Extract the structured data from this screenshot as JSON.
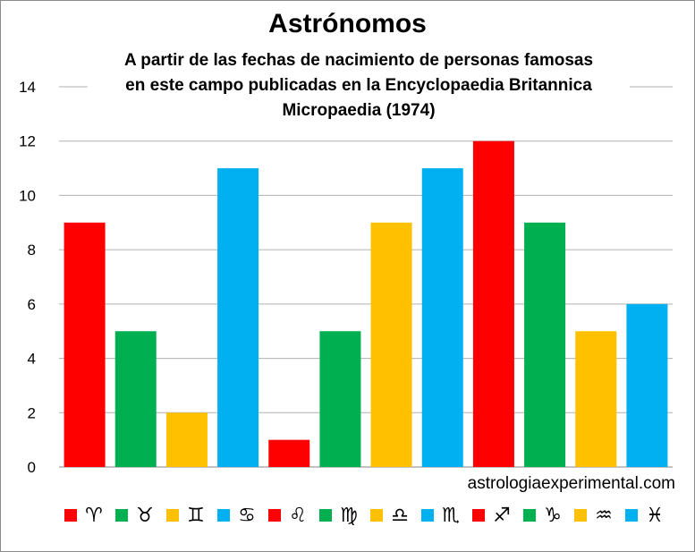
{
  "chart_data": {
    "type": "bar",
    "title": "Astrónomos",
    "subtitle": [
      "A partir de las fechas de nacimiento de personas famosas",
      "en este campo publicadas  en la Encyclopaedia Britannica",
      "Micropaedia (1974)"
    ],
    "categories": [
      "♈",
      "♉",
      "♊",
      "♋",
      "♌",
      "♍",
      "♎",
      "♏",
      "♐",
      "♑",
      "♒",
      "♓"
    ],
    "values": [
      9,
      5,
      2,
      11,
      1,
      5,
      9,
      11,
      12,
      9,
      5,
      6
    ],
    "colors": [
      "#ff0000",
      "#00b050",
      "#ffc000",
      "#00b0f0",
      "#ff0000",
      "#00b050",
      "#ffc000",
      "#00b0f0",
      "#ff0000",
      "#00b050",
      "#ffc000",
      "#00b0f0"
    ],
    "ylim": [
      0,
      14
    ],
    "yticks": [
      "0",
      "2",
      "4",
      "6",
      "8",
      "10",
      "12",
      "14"
    ],
    "grid": true,
    "legend_position": "bottom",
    "xlabel": "",
    "ylabel": ""
  },
  "watermark": "astrologiaexperimental.com"
}
